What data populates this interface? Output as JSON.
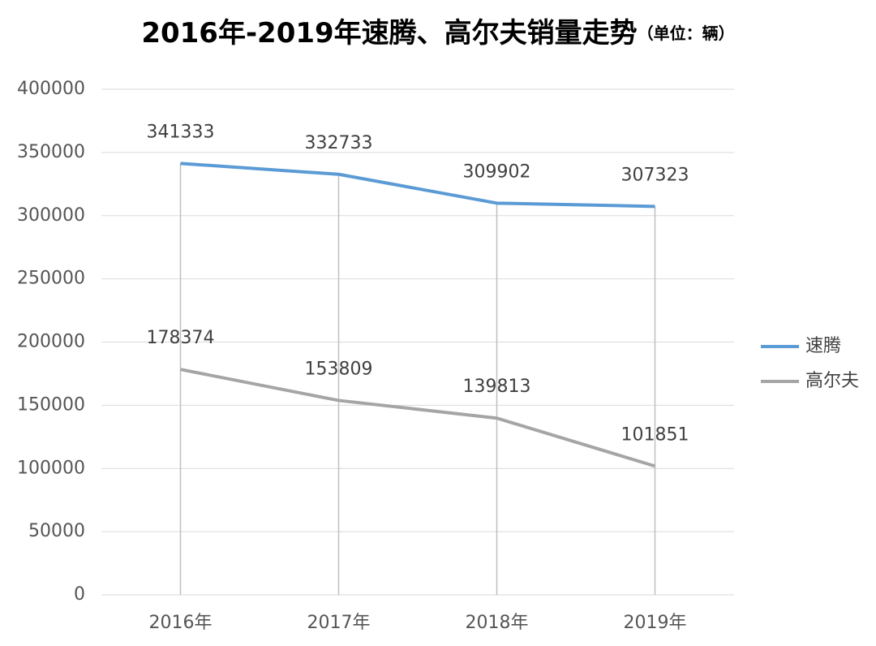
{
  "chart_data": {
    "type": "line",
    "title": "2016年-2019年速腾、高尔夫销量走势",
    "subtitle": "（单位：辆）",
    "categories": [
      "2016年",
      "2017年",
      "2018年",
      "2019年"
    ],
    "series": [
      {
        "name": "速腾",
        "color": "#5b9bd5",
        "values": [
          341333,
          332733,
          309902,
          307323
        ]
      },
      {
        "name": "高尔夫",
        "color": "#a5a5a5",
        "values": [
          178374,
          153809,
          139813,
          101851
        ]
      }
    ],
    "ylim": [
      0,
      400000
    ],
    "yticks": [
      0,
      50000,
      100000,
      150000,
      200000,
      250000,
      300000,
      350000,
      400000
    ],
    "grid": true,
    "legend": "right"
  }
}
